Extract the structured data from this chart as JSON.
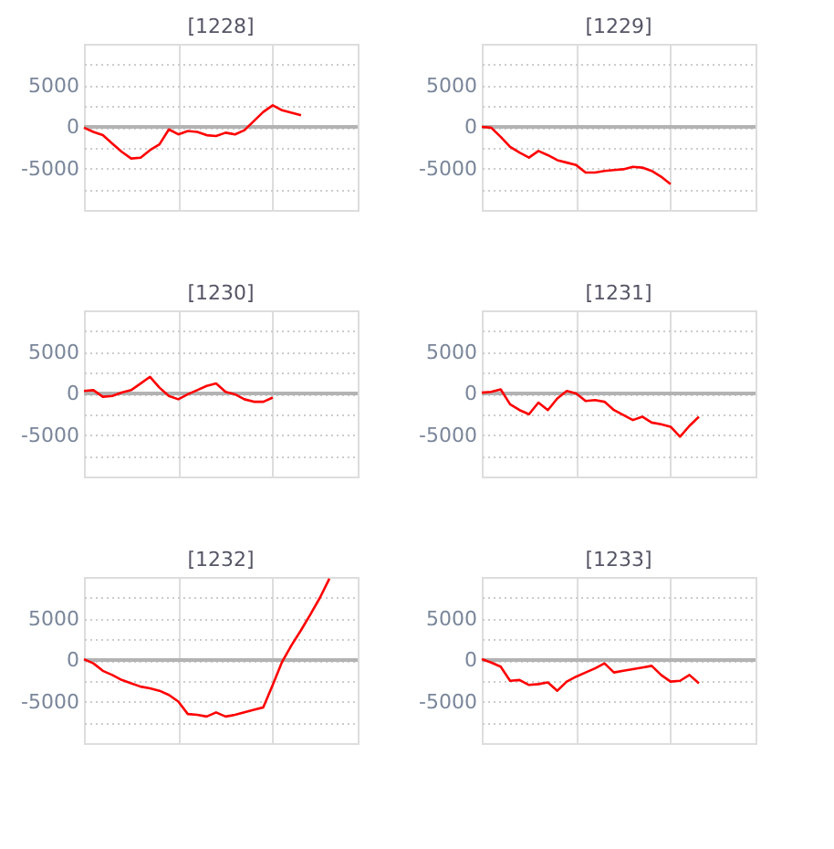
{
  "chart_data": [
    {
      "type": "line",
      "title": "[1228]",
      "categories": [
        null,
        null,
        null,
        null,
        null,
        null,
        null,
        null,
        null,
        null,
        null,
        null,
        null,
        null,
        null,
        null,
        null,
        null,
        null,
        null,
        null,
        null,
        null,
        null,
        null,
        null,
        null,
        null,
        null,
        null
      ],
      "series": [
        {
          "color": "#ff0000",
          "values": [
            -100,
            -600,
            -1000,
            -2000,
            -3000,
            -3800,
            -3700,
            -2800,
            -2100,
            -300,
            -900,
            -500,
            -600,
            -1000,
            -1100,
            -700,
            -900,
            -400,
            700,
            1800,
            2600,
            2000,
            1700,
            1400,
            null,
            null,
            null,
            null,
            null,
            null
          ]
        }
      ],
      "ylim": [
        -10000,
        10000
      ],
      "yticks": [
        {
          "value": -7500,
          "label": null
        },
        -5000,
        {
          "value": -2500,
          "label": null
        },
        0,
        {
          "value": 2500,
          "label": null
        },
        5000,
        {
          "value": 7500,
          "label": null
        }
      ],
      "grid": true,
      "tick_labels": "y",
      "ref_lines": [
        {
          "axis": "y",
          "value": 0,
          "color": "#b3b3b3"
        }
      ],
      "marker": "none",
      "line_style": "solid"
    },
    {
      "type": "line",
      "title": "[1229]",
      "categories": [
        null,
        null,
        null,
        null,
        null,
        null,
        null,
        null,
        null,
        null,
        null,
        null,
        null,
        null,
        null,
        null,
        null,
        null,
        null,
        null,
        null,
        null,
        null,
        null,
        null,
        null,
        null,
        null,
        null,
        null
      ],
      "series": [
        {
          "color": "#ff0000",
          "values": [
            0,
            -100,
            -1200,
            -2400,
            -3100,
            -3700,
            -2900,
            -3400,
            -4000,
            -4300,
            -4600,
            -5500,
            -5500,
            -5300,
            -5200,
            -5100,
            -4800,
            -4900,
            -5300,
            -6000,
            -6900,
            null,
            null,
            null,
            null,
            null,
            null,
            null,
            null,
            null
          ]
        }
      ],
      "ylim": [
        -10000,
        10000
      ],
      "yticks": [
        {
          "value": -7500,
          "label": null
        },
        -5000,
        {
          "value": -2500,
          "label": null
        },
        0,
        {
          "value": 2500,
          "label": null
        },
        5000,
        {
          "value": 7500,
          "label": null
        }
      ],
      "grid": true,
      "tick_labels": "y",
      "ref_lines": [
        {
          "axis": "y",
          "value": 0,
          "color": "#b3b3b3"
        }
      ],
      "marker": "none",
      "line_style": "solid"
    },
    {
      "type": "line",
      "title": "[1230]",
      "categories": [
        null,
        null,
        null,
        null,
        null,
        null,
        null,
        null,
        null,
        null,
        null,
        null,
        null,
        null,
        null,
        null,
        null,
        null,
        null,
        null,
        null,
        null,
        null,
        null,
        null,
        null,
        null,
        null,
        null,
        null
      ],
      "series": [
        {
          "color": "#ff0000",
          "values": [
            300,
            400,
            -400,
            -300,
            100,
            400,
            1200,
            2000,
            700,
            -300,
            -700,
            -100,
            400,
            900,
            1200,
            200,
            -100,
            -700,
            -1000,
            -1000,
            -500,
            null,
            null,
            null,
            null,
            null,
            null,
            null,
            null,
            null
          ]
        }
      ],
      "ylim": [
        -10000,
        10000
      ],
      "yticks": [
        {
          "value": -7500,
          "label": null
        },
        -5000,
        {
          "value": -2500,
          "label": null
        },
        0,
        {
          "value": 2500,
          "label": null
        },
        5000,
        {
          "value": 7500,
          "label": null
        }
      ],
      "grid": true,
      "tick_labels": "y",
      "ref_lines": [
        {
          "axis": "y",
          "value": 0,
          "color": "#b3b3b3"
        }
      ],
      "marker": "none",
      "line_style": "solid"
    },
    {
      "type": "line",
      "title": "[1231]",
      "categories": [
        null,
        null,
        null,
        null,
        null,
        null,
        null,
        null,
        null,
        null,
        null,
        null,
        null,
        null,
        null,
        null,
        null,
        null,
        null,
        null,
        null,
        null,
        null,
        null,
        null,
        null,
        null,
        null,
        null,
        null
      ],
      "series": [
        {
          "color": "#ff0000",
          "values": [
            100,
            200,
            500,
            -1300,
            -2000,
            -2500,
            -1100,
            -2000,
            -600,
            300,
            0,
            -900,
            -800,
            -1000,
            -2000,
            -2600,
            -3200,
            -2800,
            -3500,
            -3700,
            -4000,
            -5200,
            -3900,
            -2800,
            null,
            null,
            null,
            null,
            null,
            null
          ]
        }
      ],
      "ylim": [
        -10000,
        10000
      ],
      "yticks": [
        {
          "value": -7500,
          "label": null
        },
        -5000,
        {
          "value": -2500,
          "label": null
        },
        0,
        {
          "value": 2500,
          "label": null
        },
        5000,
        {
          "value": 7500,
          "label": null
        }
      ],
      "grid": true,
      "tick_labels": "y",
      "ref_lines": [
        {
          "axis": "y",
          "value": 0,
          "color": "#b3b3b3"
        }
      ],
      "marker": "none",
      "line_style": "solid"
    },
    {
      "type": "line",
      "title": "[1232]",
      "categories": [
        null,
        null,
        null,
        null,
        null,
        null,
        null,
        null,
        null,
        null,
        null,
        null,
        null,
        null,
        null,
        null,
        null,
        null,
        null,
        null,
        null,
        null,
        null,
        null,
        null,
        null,
        null,
        null,
        null,
        null
      ],
      "series": [
        {
          "color": "#ff0000",
          "values": [
            100,
            -400,
            -1300,
            -1800,
            -2400,
            -2800,
            -3200,
            -3400,
            -3700,
            -4200,
            -5000,
            -6500,
            -6600,
            -6800,
            -6300,
            -6800,
            -6600,
            -6300,
            -6000,
            -5700,
            -3000,
            -200,
            1800,
            3600,
            5500,
            7500,
            9800,
            null,
            null,
            null
          ]
        }
      ],
      "ylim": [
        -10000,
        10000
      ],
      "yticks": [
        {
          "value": -7500,
          "label": null
        },
        -5000,
        {
          "value": -2500,
          "label": null
        },
        0,
        {
          "value": 2500,
          "label": null
        },
        5000,
        {
          "value": 7500,
          "label": null
        }
      ],
      "grid": true,
      "tick_labels": "y",
      "ref_lines": [
        {
          "axis": "y",
          "value": 0,
          "color": "#b3b3b3"
        }
      ],
      "marker": "none",
      "line_style": "solid"
    },
    {
      "type": "line",
      "title": "[1233]",
      "categories": [
        null,
        null,
        null,
        null,
        null,
        null,
        null,
        null,
        null,
        null,
        null,
        null,
        null,
        null,
        null,
        null,
        null,
        null,
        null,
        null,
        null,
        null,
        null,
        null,
        null,
        null,
        null,
        null,
        null,
        null
      ],
      "series": [
        {
          "color": "#ff0000",
          "values": [
            100,
            -300,
            -800,
            -2500,
            -2400,
            -3000,
            -2900,
            -2700,
            -3700,
            -2600,
            -2000,
            -1500,
            -1000,
            -400,
            -1500,
            -1300,
            -1100,
            -900,
            -700,
            -1800,
            -2600,
            -2500,
            -1800,
            -2800,
            null,
            null,
            null,
            null,
            null,
            null
          ]
        }
      ],
      "ylim": [
        -10000,
        10000
      ],
      "yticks": [
        {
          "value": -7500,
          "label": null
        },
        -5000,
        {
          "value": -2500,
          "label": null
        },
        0,
        {
          "value": 2500,
          "label": null
        },
        5000,
        {
          "value": 7500,
          "label": null
        }
      ],
      "grid": true,
      "tick_labels": "y",
      "ref_lines": [
        {
          "axis": "y",
          "value": 0,
          "color": "#b3b3b3"
        }
      ],
      "marker": "none",
      "line_style": "solid"
    }
  ]
}
